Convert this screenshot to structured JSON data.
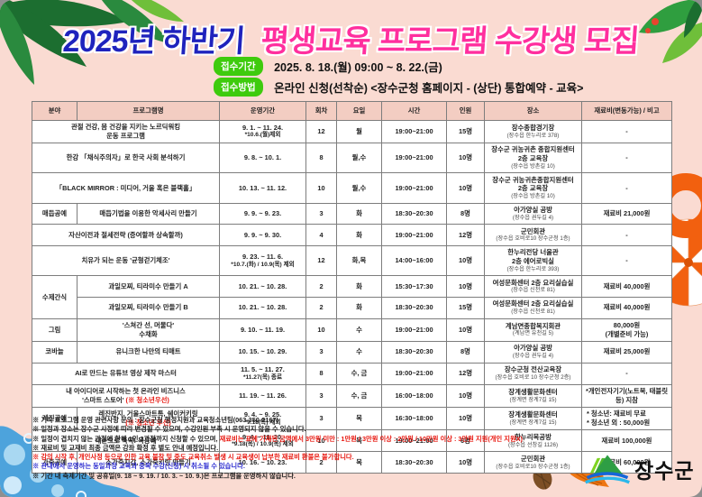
{
  "title": {
    "part1": "2025년 하반기",
    "part2": "평생교육 프로그램 수강생 모집"
  },
  "apply": {
    "period_label": "접수기간",
    "period_value": "2025. 8. 18.(월) 09:00  ~  8. 22.(금)",
    "method_label": "접수방법",
    "method_value": "온라인 신청(선착순) <장수군청 홈페이지 - (상단) 통합예약 - 교육>"
  },
  "table": {
    "headers": [
      "분야",
      "프로그램명",
      "운영기간",
      "회차",
      "요일",
      "시간",
      "인원",
      "장소",
      "재료비(변동가능) / 비고"
    ],
    "rows": [
      {
        "merged": true,
        "name": [
          [
            {
              "t": "관절 건강, 몸 건강을 지키는 노르딕워킹"
            }
          ],
          [
            {
              "t": "운동 프로그램"
            }
          ]
        ],
        "period": [
          "9. 1. ~ 11. 24.",
          "*10.6.(월)제외"
        ],
        "sessions": "12",
        "day": "월",
        "time": "19:00~21:00",
        "people": "15명",
        "place": {
          "lines": [
            "장수종합경기장"
          ],
          "sub": "(장수읍 한누리로 378)"
        },
        "fee": [
          "-"
        ]
      },
      {
        "merged": true,
        "name": [
          [
            {
              "t": "한강 「채식주의자」로 한국 사회 분석하기"
            }
          ]
        ],
        "period": [
          "9. 8. ~ 10. 1."
        ],
        "sessions": "8",
        "day": "월,수",
        "time": "19:00~21:00",
        "people": "10명",
        "place": {
          "lines": [
            "장수군 귀농귀촌 종합지원센터",
            "2층 교육장"
          ],
          "sub": "(장수읍 방촌길 10)"
        },
        "fee": [
          "-"
        ]
      },
      {
        "merged": true,
        "name": [
          [
            {
              "t": "「BLACK MIRROR : 미디어, 거울 혹은 블랙홀」"
            }
          ]
        ],
        "period": [
          "10. 13. ~ 11. 12."
        ],
        "sessions": "10",
        "day": "월,수",
        "time": "19:00~21:00",
        "people": "10명",
        "place": {
          "lines": [
            "장수군 귀농귀촌종합지원센터",
            "2층 교육장"
          ],
          "sub": "(장수읍 방촌길 10)"
        },
        "fee": [
          "-"
        ]
      },
      {
        "category": "매듭공예",
        "name": [
          [
            {
              "t": "매듭기법을 이용한 악세사리 만들기"
            }
          ]
        ],
        "period": [
          "9. 9. ~ 9. 23."
        ],
        "sessions": "3",
        "day": "화",
        "time": "18:30~20:30",
        "people": "8명",
        "place": {
          "lines": [
            "아가양실 공방"
          ],
          "sub": "(장수읍 권두길 4)"
        },
        "fee": [
          "재료비 21,000원"
        ]
      },
      {
        "merged": true,
        "name": [
          [
            {
              "t": "자산이전과 절세전략 (증여할까 상속할까)"
            }
          ]
        ],
        "period": [
          "9. 9. ~ 9. 30."
        ],
        "sessions": "4",
        "day": "화",
        "time": "19:00~21:00",
        "people": "12명",
        "place": {
          "lines": [
            "군민회관"
          ],
          "sub": "(장수읍 호비로10 장수군청 1층)"
        },
        "fee": [
          "-"
        ]
      },
      {
        "merged": true,
        "name": [
          [
            {
              "t": "치유가 되는 운동 '균형걷기체조'"
            }
          ]
        ],
        "period": [
          "9. 23. ~ 11. 6.",
          "*10.7.(화) / 10.9(목) 제외"
        ],
        "sessions": "12",
        "day": "화,목",
        "time": "14:00~16:00",
        "people": "10명",
        "place": {
          "lines": [
            "한누리전당 너울관",
            "2층 에어로빅실"
          ],
          "sub": "(장수읍 한누리로 393)"
        },
        "fee": [
          "-"
        ]
      },
      {
        "category": "수제간식",
        "rowspan": 2,
        "name": [
          [
            {
              "t": "과일모찌, 티라미수 만들기 A"
            }
          ]
        ],
        "period": [
          "10. 21. ~ 10. 28."
        ],
        "sessions": "2",
        "day": "화",
        "time": "15:30~17:30",
        "people": "10명",
        "place": {
          "lines": [
            "여성문화센터 2층 요리실습실"
          ],
          "sub": "(장수읍 신천로 81)"
        },
        "fee": [
          "재료비 40,000원"
        ]
      },
      {
        "skip_category": true,
        "name": [
          [
            {
              "t": "과일모찌, 티라미수 만들기 B"
            }
          ]
        ],
        "period": [
          "10. 21. ~ 10. 28."
        ],
        "sessions": "2",
        "day": "화",
        "time": "18:30~20:30",
        "people": "15명",
        "place": {
          "lines": [
            "여성문화센터 2층 요리실습실"
          ],
          "sub": "(장수읍 신천로 81)"
        },
        "fee": [
          "재료비 40,000원"
        ]
      },
      {
        "category": "그림",
        "name": [
          [
            {
              "t": "'스쳐간 선, 머물다'"
            }
          ],
          [
            {
              "t": "수채화"
            }
          ]
        ],
        "period": [
          "9. 10. ~ 11. 19."
        ],
        "sessions": "10",
        "day": "수",
        "time": "19:00~21:00",
        "people": "10명",
        "place": {
          "lines": [
            "계남면종합복지회관"
          ],
          "sub": "(계남면 유천길 5)"
        },
        "fee": [
          "80,000원",
          "(개별준비 가능)"
        ]
      },
      {
        "category": "코바늘",
        "name": [
          [
            {
              "t": "유니크한 나만의 티매트"
            }
          ]
        ],
        "period": [
          "10. 15. ~ 10. 29."
        ],
        "sessions": "3",
        "day": "수",
        "time": "18:30~20:30",
        "people": "8명",
        "place": {
          "lines": [
            "아가양실 공방"
          ],
          "sub": "(장수읍 권두길 4)"
        },
        "fee": [
          "재료비 25,000원"
        ]
      },
      {
        "merged": true,
        "name": [
          [
            {
              "t": "AI로 만드는 유튜브 영상 제작 마스터"
            }
          ]
        ],
        "period": [
          "11. 5. ~ 11. 27.",
          "*11.27(목) 종료"
        ],
        "sessions": "8",
        "day": "수, 금",
        "time": "19:00~21:00",
        "people": "12명",
        "place": {
          "lines": [
            "장수군청 전산교육장"
          ],
          "sub": "(장수읍 호비로 10 장수군청 2층)"
        },
        "fee": [
          "-"
        ]
      },
      {
        "merged": true,
        "name": [
          [
            {
              "t": "내 아이디어로 시작하는 첫 온라인 비즈니스"
            }
          ],
          [
            {
              "t": "'스마트 스토어' "
            },
            {
              "t": "(※ 청소년우선)",
              "c": "red"
            }
          ]
        ],
        "period": [
          "11. 19. ~ 11. 26."
        ],
        "sessions": "3",
        "day": "수, 금",
        "time": "16:00~18:00",
        "people": "10명",
        "place": {
          "lines": [
            "장계생활문화센터"
          ],
          "sub": "(장계면 장계7길 15)"
        },
        "fee": [
          "*개인전자기기(노트북, 태블릿 등) 지참"
        ]
      },
      {
        "category": "레진공예",
        "name": [
          [
            {
              "t": "레진반지, 거울스마트톡, 쉐이커키링"
            }
          ],
          [
            {
              "t": "(※ 청소년 우선)",
              "c": "red"
            }
          ]
        ],
        "period": [
          "9. 4. ~ 9. 25.",
          "*9.18(목) 제외"
        ],
        "sessions": "3",
        "day": "목",
        "time": "16:30~18:00",
        "people": "10명",
        "place": {
          "lines": [
            "장계생활문화센터"
          ],
          "sub": "(장계면 장계7길 15)"
        },
        "fee": [
          "* 청소년: 재료비 무료",
          "* 청소년 외 : 50,000원"
        ],
        "fee_align": "left"
      },
      {
        "merged": true,
        "name": [
          [
            {
              "t": "내손으로 뚝딱! 목공예"
            }
          ]
        ],
        "period": [
          "9. 4. ~ 11. 20.",
          "*9.18(목) / 10.9(목) 제외"
        ],
        "sessions": "10",
        "day": "목",
        "time": "19:00~21:00",
        "people": "6명",
        "place": {
          "lines": [
            "한누리목공방"
          ],
          "sub": "(장수읍 선창길 1126)"
        },
        "fee": [
          "재료비 100,000원"
        ]
      },
      {
        "category": "가죽공예",
        "name": [
          [
            {
              "t": "소가죽지갑, 소가죽키링 만들기"
            }
          ]
        ],
        "period": [
          "10. 16. ~ 10. 23."
        ],
        "sessions": "2",
        "day": "목",
        "time": "18:30~20:30",
        "people": "10명",
        "place": {
          "lines": [
            "군민회관"
          ],
          "sub": "(장수읍 호비로10 장수군청 1층)"
        },
        "fee": [
          "재료비 60,000원"
        ]
      }
    ]
  },
  "footnotes": [
    [
      {
        "t": "※ 기타 프로그램 운영 관련사항 문의 : 장수군청 행정지원과 교육청소년팀(063-350-2167)"
      }
    ],
    [
      {
        "t": "※ 일정과 장소는 장수군 사정에 따라 변경될 수 있으며, 수강인원 부족 시 운영되지 않을 수 있습니다."
      }
    ],
    [
      {
        "t": "※ 일정이 겹치지 않는 과정에 한해 1인 3과정까지 신청할 수 있으며, "
      },
      {
        "t": "재료비는 표에 기재된 금액에서 3만원 미만 : 1만원 / 3만원 이상 : 2만원 / 10만원 이상 : 3만원 지원(개인 지원X)",
        "c": "red"
      }
    ],
    [
      {
        "t": "※ 재료비 및 교재비 최종 금액은 강좌 확정 후 별도 안내 예정입니다."
      }
    ],
    [
      {
        "t": "※ 강의 시작 후, 개인사정 등으로 인한 교육 불참 및 중도 교육취소 발생 시 교육생이 납부한 재료비 환불은 불가합니다.",
        "c": "red"
      }
    ],
    [
      {
        "t": "※ 관내에서 운영하는 동일과정 교육과 중복 수강(신청) 시 취소될 수 있습니다.",
        "c": "blue"
      }
    ],
    [
      {
        "t": "※ 기간 내 축제기간 및 공휴일(9. 18 ~ 9. 19. / 10. 3. ~ 10. 9.)은 프로그램을 운영하지 않습니다."
      }
    ]
  ],
  "logo": {
    "text": "장수군"
  },
  "icons": [
    "palm-leaves",
    "tropical-leaves",
    "swim-ring",
    "parasol",
    "water-bubbles",
    "starfish",
    "clam-shell",
    "conch-shell",
    "jangsu-emblem"
  ],
  "colors": {
    "background": "#fadbd2",
    "title_blue": "#1f23bd",
    "title_pink": "#ff2f9e",
    "badge_green": "#3ecb0d",
    "header_pink": "#f3cdc2",
    "cell_cyan": "#cdf2f0",
    "note_red": "#e8140c",
    "note_blue": "#2b2bd0",
    "ring_orange": "#f2600f"
  }
}
